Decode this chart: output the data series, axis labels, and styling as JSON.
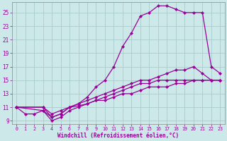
{
  "xlabel": "Windchill (Refroidissement éolien,°C)",
  "bg_color": "#cce8e8",
  "line_color": "#990099",
  "grid_color": "#aacccc",
  "xlim": [
    -0.5,
    23.5
  ],
  "ylim": [
    8.5,
    26.5
  ],
  "yticks": [
    9,
    11,
    13,
    15,
    17,
    19,
    21,
    23,
    25
  ],
  "xticks": [
    0,
    1,
    2,
    3,
    4,
    5,
    6,
    7,
    8,
    9,
    10,
    11,
    12,
    13,
    14,
    15,
    16,
    17,
    18,
    19,
    20,
    21,
    22,
    23
  ],
  "line1_x": [
    0,
    1,
    2,
    3,
    4,
    5,
    6,
    7,
    8,
    9,
    10,
    11,
    12,
    13,
    14,
    15,
    16,
    17,
    18,
    19,
    20,
    21,
    22,
    23
  ],
  "line1_y": [
    11,
    10,
    10,
    10.5,
    9.5,
    10,
    11,
    11.5,
    12.5,
    14,
    15,
    17,
    20,
    22,
    24.5,
    25,
    26,
    26,
    25.5,
    25,
    25,
    25,
    17,
    16
  ],
  "line2_x": [
    0,
    3,
    4,
    5,
    6,
    7,
    8,
    9,
    10,
    11,
    12,
    13,
    14,
    15,
    16,
    17,
    18,
    19,
    20,
    21,
    22,
    23
  ],
  "line2_y": [
    11,
    11,
    10,
    10.5,
    11,
    11.5,
    12,
    12.5,
    13,
    13.5,
    14,
    14.5,
    15,
    15,
    15.5,
    16,
    16.5,
    16.5,
    17,
    16,
    15,
    15
  ],
  "line3_x": [
    0,
    3,
    4,
    5,
    6,
    7,
    8,
    9,
    10,
    11,
    12,
    13,
    14,
    15,
    16,
    17,
    18,
    19,
    20,
    21,
    22,
    23
  ],
  "line3_y": [
    11,
    11,
    9.5,
    10,
    11,
    11.2,
    11.5,
    12,
    12.5,
    13,
    13.5,
    14,
    14.5,
    14.5,
    15,
    15,
    15,
    15,
    15,
    15,
    15,
    15
  ],
  "line4_x": [
    0,
    3,
    4,
    5,
    6,
    7,
    8,
    9,
    10,
    11,
    12,
    13,
    14,
    15,
    16,
    17,
    18,
    19,
    20,
    21,
    22,
    23
  ],
  "line4_y": [
    11,
    10.5,
    9,
    9.5,
    10.5,
    11,
    11.5,
    12,
    12,
    12.5,
    13,
    13,
    13.5,
    14,
    14,
    14,
    14.5,
    14.5,
    15,
    15,
    15,
    15
  ]
}
